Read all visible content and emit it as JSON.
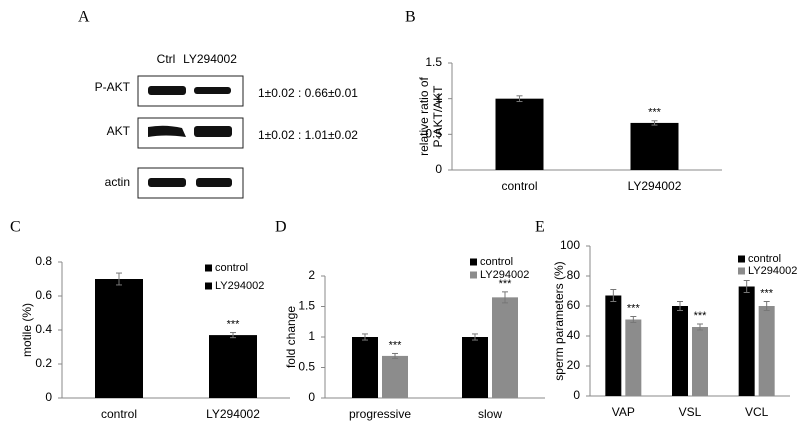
{
  "blot": {
    "label": "A",
    "columns": [
      "Ctrl",
      "LY294002"
    ],
    "rows": [
      "P-AKT",
      "AKT",
      "actin"
    ],
    "ratios": [
      "1±0.02 : 0.66±0.01",
      "1±0.02 : 1.01±0.02"
    ]
  },
  "chart_data": [
    {
      "type": "bar",
      "label": "B",
      "ylabel": [
        "relative ratio of",
        "P-AKT/AKT"
      ],
      "categories": [
        "control",
        "LY294002"
      ],
      "values": [
        1.0,
        0.66
      ],
      "errors": [
        0.04,
        0.03
      ],
      "significance": [
        null,
        "***"
      ],
      "color": "#000000",
      "ylim": [
        0,
        1.5
      ],
      "yticks": [
        0,
        0.5,
        1,
        1.5
      ]
    },
    {
      "type": "bar",
      "label": "C",
      "ylabel": [
        "motile (%)"
      ],
      "categories": [
        "control",
        "LY294002"
      ],
      "series": [
        {
          "name": "control",
          "color": "#000000",
          "values": [
            0.7,
            null
          ],
          "errors": [
            0.035,
            null
          ],
          "significance": [
            null,
            null
          ]
        },
        {
          "name": "LY294002",
          "color": "#000000",
          "values": [
            null,
            0.37
          ],
          "errors": [
            null,
            0.015
          ],
          "significance": [
            null,
            "***"
          ]
        }
      ],
      "ylim": [
        0,
        0.8
      ],
      "yticks": [
        0,
        0.2,
        0.4,
        0.6,
        0.8
      ]
    },
    {
      "type": "bar",
      "label": "D",
      "ylabel": [
        "fold change"
      ],
      "categories": [
        "progressive",
        "slow"
      ],
      "series": [
        {
          "name": "control",
          "color": "#000000",
          "values": [
            1.0,
            1.0
          ],
          "errors": [
            0.05,
            0.05
          ],
          "significance": [
            null,
            null
          ]
        },
        {
          "name": "LY294002",
          "color": "#8c8c8c",
          "values": [
            0.69,
            1.65
          ],
          "errors": [
            0.04,
            0.09
          ],
          "significance": [
            "***",
            "***"
          ]
        }
      ],
      "ylim": [
        0,
        2
      ],
      "yticks": [
        0,
        0.5,
        1,
        1.5,
        2
      ]
    },
    {
      "type": "bar",
      "label": "E",
      "ylabel": [
        "sperm parameters (%)"
      ],
      "categories": [
        "VAP",
        "VSL",
        "VCL"
      ],
      "series": [
        {
          "name": "control",
          "color": "#000000",
          "values": [
            67,
            60,
            73
          ],
          "errors": [
            4,
            3,
            4
          ],
          "significance": [
            null,
            null,
            null
          ]
        },
        {
          "name": "LY294002",
          "color": "#8c8c8c",
          "values": [
            51,
            46,
            60
          ],
          "errors": [
            2,
            2,
            3
          ],
          "significance": [
            "***",
            "***",
            "***"
          ]
        }
      ],
      "ylim": [
        0,
        100
      ],
      "yticks": [
        0,
        20,
        40,
        60,
        80,
        100
      ]
    }
  ]
}
